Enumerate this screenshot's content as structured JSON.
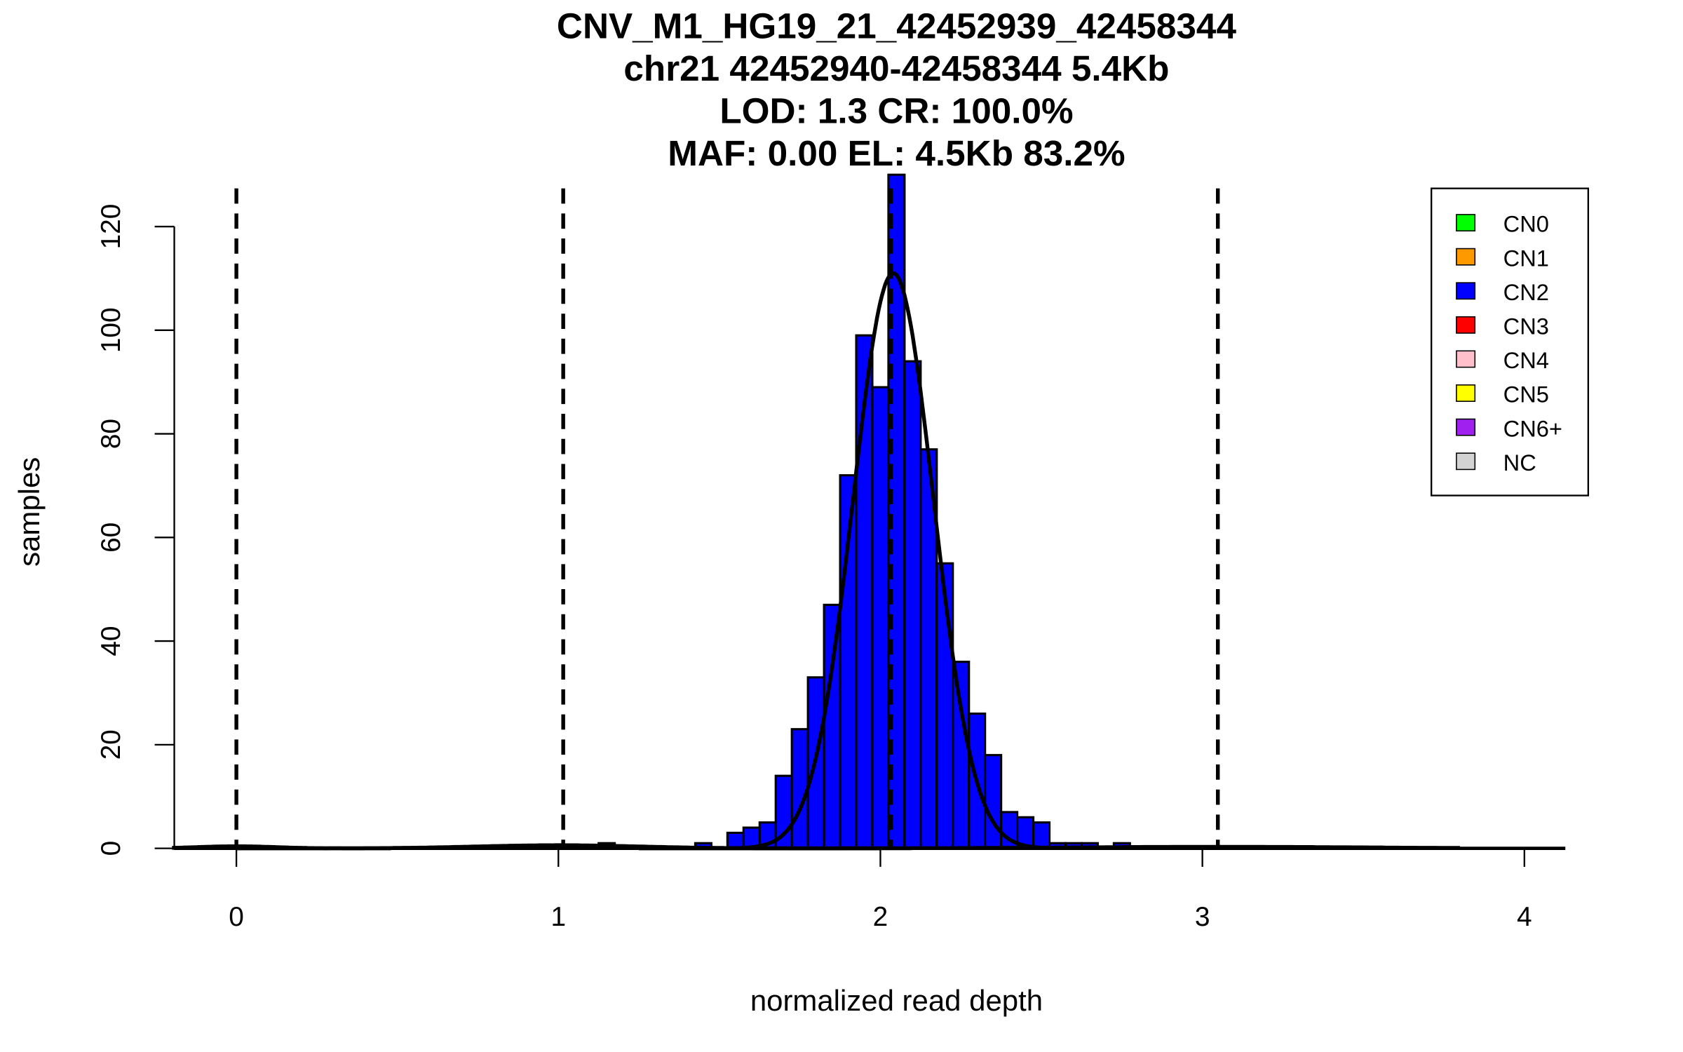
{
  "chart_data": {
    "type": "bar",
    "title": [
      "CNV_M1_HG19_21_42452939_42458344",
      "chr21 42452940-42458344 5.4Kb",
      "LOD: 1.3 CR: 100.0%",
      "MAF: 0.00 EL: 4.5Kb 83.2%"
    ],
    "xlabel": "normalized read depth",
    "ylabel": "samples",
    "xlim": [
      -0.2,
      4.1
    ],
    "ylim": [
      0,
      130
    ],
    "xticks": [
      "0",
      "1",
      "2",
      "3",
      "4"
    ],
    "yticks": [
      "0",
      "20",
      "40",
      "60",
      "80",
      "100",
      "120"
    ],
    "bin_width": 0.05,
    "bins": [
      {
        "x": 1.15,
        "count": 1,
        "class": "CN1"
      },
      {
        "x": 1.45,
        "count": 1,
        "class": "CN2"
      },
      {
        "x": 1.55,
        "count": 3,
        "class": "CN2"
      },
      {
        "x": 1.6,
        "count": 4,
        "class": "CN2"
      },
      {
        "x": 1.65,
        "count": 5,
        "class": "CN2"
      },
      {
        "x": 1.7,
        "count": 14,
        "class": "CN2"
      },
      {
        "x": 1.75,
        "count": 23,
        "class": "CN2"
      },
      {
        "x": 1.8,
        "count": 33,
        "class": "CN2"
      },
      {
        "x": 1.85,
        "count": 47,
        "class": "CN2"
      },
      {
        "x": 1.9,
        "count": 72,
        "class": "CN2"
      },
      {
        "x": 1.95,
        "count": 99,
        "class": "CN2"
      },
      {
        "x": 2.0,
        "count": 89,
        "class": "CN2"
      },
      {
        "x": 2.05,
        "count": 130,
        "class": "CN2"
      },
      {
        "x": 2.1,
        "count": 94,
        "class": "CN2"
      },
      {
        "x": 2.15,
        "count": 77,
        "class": "CN2"
      },
      {
        "x": 2.2,
        "count": 55,
        "class": "CN2"
      },
      {
        "x": 2.25,
        "count": 36,
        "class": "CN2"
      },
      {
        "x": 2.3,
        "count": 26,
        "class": "CN2"
      },
      {
        "x": 2.35,
        "count": 18,
        "class": "CN2"
      },
      {
        "x": 2.4,
        "count": 7,
        "class": "CN2"
      },
      {
        "x": 2.45,
        "count": 6,
        "class": "CN2"
      },
      {
        "x": 2.5,
        "count": 5,
        "class": "CN2"
      },
      {
        "x": 2.55,
        "count": 1,
        "class": "CN2"
      },
      {
        "x": 2.6,
        "count": 1,
        "class": "CN2"
      },
      {
        "x": 2.65,
        "count": 1,
        "class": "CN2"
      },
      {
        "x": 2.75,
        "count": 1,
        "class": "CN2"
      }
    ],
    "dashed_lines": [
      0.0,
      1.015,
      2.033,
      3.048
    ],
    "fit_curves": [
      {
        "mean": 2.04,
        "sd": 0.125,
        "peak": 111
      },
      {
        "mean": 0.0,
        "sd": 0.12,
        "peak": 0.4
      },
      {
        "mean": 1.0,
        "sd": 0.25,
        "peak": 0.6
      },
      {
        "mean": 3.05,
        "sd": 0.45,
        "peak": 0.3
      }
    ],
    "legend": {
      "placement": "top-right",
      "entries": [
        {
          "label": "CN0",
          "color": "#00ff00"
        },
        {
          "label": "CN1",
          "color": "#ff9900"
        },
        {
          "label": "CN2",
          "color": "#0000ff"
        },
        {
          "label": "CN3",
          "color": "#ff0000"
        },
        {
          "label": "CN4",
          "color": "#ffc0cb"
        },
        {
          "label": "CN5",
          "color": "#ffff00"
        },
        {
          "label": "CN6+",
          "color": "#a020f0"
        },
        {
          "label": "NC",
          "color": "#d3d3d3"
        }
      ]
    }
  }
}
